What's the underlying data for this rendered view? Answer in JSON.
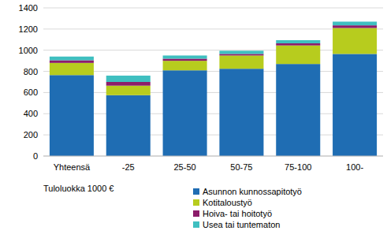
{
  "chart_data": {
    "type": "bar",
    "stacked": true,
    "grid": true,
    "legend": "bottom",
    "x_label": "Tuloluokka 1000 €",
    "categories": [
      "Yhteensä",
      "-25",
      "25-50",
      "50-75",
      "75-100",
      "100-"
    ],
    "series": [
      {
        "name": "Asunnon kunnossapitotyö",
        "color": "#1f6db3",
        "values": [
          765,
          575,
          810,
          825,
          870,
          965
        ]
      },
      {
        "name": "Kotitaloustyö",
        "color": "#b7cc1e",
        "values": [
          115,
          90,
          90,
          125,
          175,
          245
        ]
      },
      {
        "name": "Hoiva- tai hoitotyö",
        "color": "#8c1d6a",
        "values": [
          25,
          35,
          20,
          15,
          20,
          25
        ]
      },
      {
        "name": "Usea  tai tuntematon",
        "color": "#3fbfc0",
        "values": [
          35,
          60,
          30,
          30,
          30,
          35
        ]
      }
    ],
    "ylim": [
      0,
      1400
    ],
    "yticks": [
      0,
      200,
      400,
      600,
      800,
      1000,
      1200,
      1400
    ]
  }
}
